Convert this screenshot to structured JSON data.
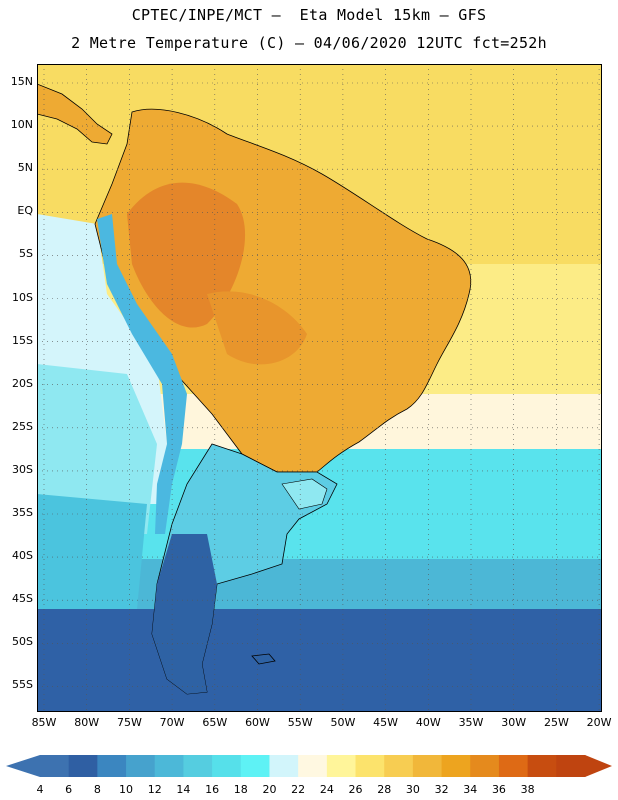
{
  "title": {
    "line1": "CPTEC/INPE/MCT –  Eta Model 15km – GFS",
    "line2": "2 Metre Temperature (C) – 04/06/2020 12UTC fct=252h"
  },
  "axes": {
    "lat_labels": [
      "15N",
      "10N",
      "5N",
      "EQ",
      "5S",
      "10S",
      "15S",
      "20S",
      "25S",
      "30S",
      "35S",
      "40S",
      "45S",
      "50S",
      "55S"
    ],
    "lon_labels": [
      "85W",
      "80W",
      "75W",
      "70W",
      "65W",
      "60W",
      "55W",
      "50W",
      "45W",
      "40W",
      "35W",
      "30W",
      "25W",
      "20W"
    ],
    "grid": "dotted"
  },
  "colorbar": {
    "labels": [
      "4",
      "6",
      "8",
      "10",
      "12",
      "14",
      "16",
      "18",
      "20",
      "22",
      "24",
      "26",
      "28",
      "30",
      "32",
      "34",
      "36",
      "38"
    ],
    "colors": [
      "#3d72b0",
      "#2f5fa3",
      "#3b86c0",
      "#46a2cd",
      "#4cb8d8",
      "#55cde0",
      "#56e0ea",
      "#5ef2f5",
      "#d2f5fb",
      "#fff8e1",
      "#fff59a",
      "#fce36c",
      "#f7cd52",
      "#f1b73a",
      "#eda41f",
      "#e58a1d",
      "#de6a15",
      "#c74d10",
      "#bf4410"
    ]
  },
  "map": {
    "ocean_tropical_color": "#f7d75a",
    "ocean_south_color": "#54e0ea",
    "deep_south_color": "#2d5d9f",
    "land_warm_color": "#eeaa33",
    "land_hot_color": "#e4862a",
    "andes_color": "#5ec9e4",
    "patagonia_color": "#2e62a4",
    "coastline_color": "#000000"
  }
}
